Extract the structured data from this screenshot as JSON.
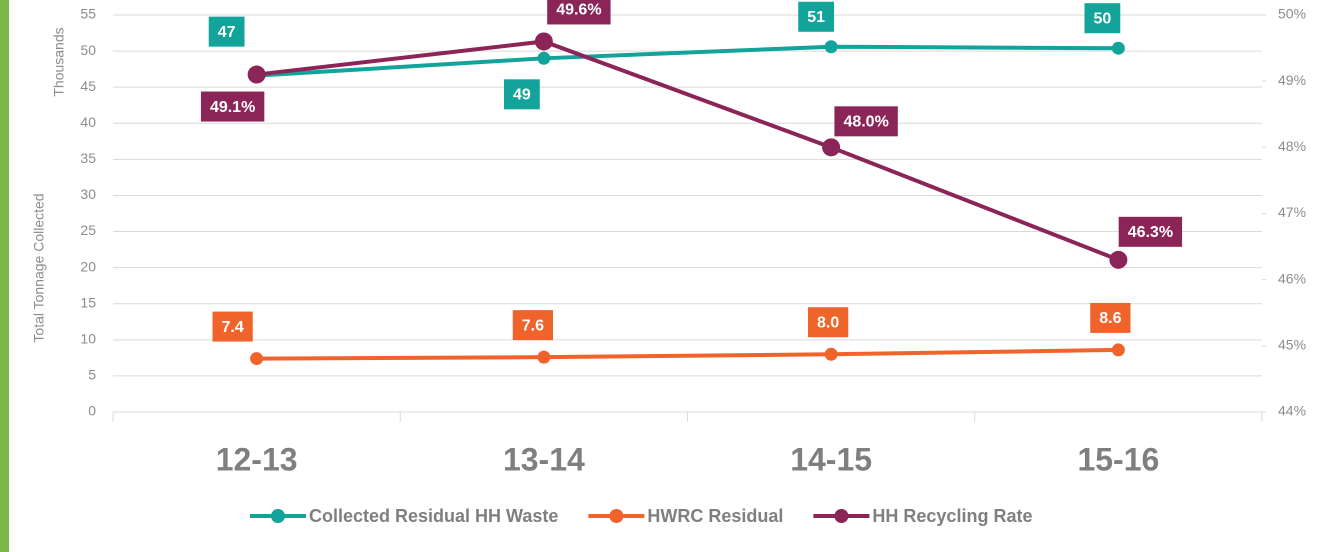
{
  "chart_data": {
    "type": "line",
    "y_label": "Total Tonnage Collected",
    "y_unit_label": "Thousands",
    "categories": [
      "12-13",
      "13-14",
      "14-15",
      "15-16"
    ],
    "ylim": [
      0,
      55
    ],
    "yticks": [
      0,
      5,
      10,
      15,
      20,
      25,
      30,
      35,
      40,
      45,
      50,
      55
    ],
    "y2lim": [
      44,
      50
    ],
    "y2ticks": [
      {
        "value": 44,
        "label": "44%"
      },
      {
        "value": 45,
        "label": "45%"
      },
      {
        "value": 46,
        "label": "46%"
      },
      {
        "value": 47,
        "label": "47%"
      },
      {
        "value": 48,
        "label": "48%"
      },
      {
        "value": 49,
        "label": "49%"
      },
      {
        "value": 50,
        "label": "50%"
      }
    ],
    "grid": true,
    "legend": "bottom",
    "series": [
      {
        "name": "Collected Residual HH Waste",
        "color": "#12a39a",
        "values": [
          46.6,
          49.0,
          50.6,
          50.4
        ],
        "value_labels": [
          "47",
          "49",
          "51",
          "50"
        ]
      },
      {
        "name": "HWRC Residual",
        "color": "#f0632a",
        "values": [
          7.4,
          7.6,
          8.0,
          8.6
        ],
        "value_labels": [
          "7.4",
          "7.6",
          "8.0",
          "8.6"
        ]
      },
      {
        "name": "HH Recycling Rate",
        "color": "#8b2457",
        "axis": "y2",
        "values": [
          49.1,
          49.6,
          48.0,
          46.3
        ],
        "value_labels": [
          "49.1%",
          "49.6%",
          "48.0%",
          "46.3%"
        ]
      }
    ]
  }
}
